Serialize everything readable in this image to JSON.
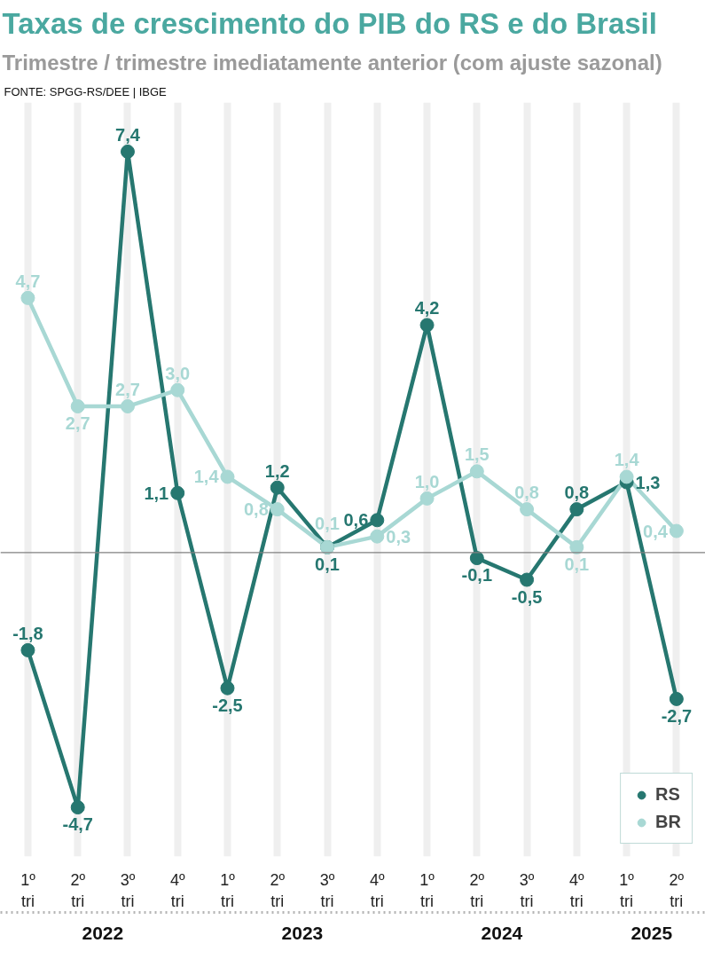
{
  "chart_data": {
    "type": "line",
    "title": "Taxas de crescimento do PIB do RS e do Brasil",
    "subtitle": "Trimestre / trimestre imediatamente anterior (com ajuste sazonal)",
    "annotations": [
      "FONTE: SPGG-RS/DEE | IBGE",
      "2022",
      "2023",
      "2024",
      "2025"
    ],
    "categories": [
      "1º tri",
      "2º tri",
      "3º tri",
      "4º tri",
      "1º tri",
      "2º tri",
      "3º tri",
      "4º tri",
      "1º tri",
      "2º tri",
      "3º tri",
      "4º tri",
      "1º tri",
      "2º tri"
    ],
    "series": [
      {
        "name": "RS",
        "color": "#267770",
        "values": [
          -1.8,
          -4.7,
          7.4,
          1.1,
          -2.5,
          1.2,
          0.1,
          0.6,
          4.2,
          -0.1,
          -0.5,
          0.8,
          1.3,
          -2.7
        ],
        "value_labels": [
          "-1,8",
          "-4,7",
          "7,4",
          "1,1",
          "-2,5",
          "1,2",
          "0,1",
          "0,6",
          "4,2",
          "-0,1",
          "-0,5",
          "0,8",
          "1,3",
          "-2,7"
        ]
      },
      {
        "name": "BR",
        "color": "#a8d8d4",
        "values": [
          4.7,
          2.7,
          2.7,
          3.0,
          1.4,
          0.8,
          0.1,
          0.3,
          1.0,
          1.5,
          0.8,
          0.1,
          1.4,
          0.4
        ],
        "value_labels": [
          "4,7",
          "2,7",
          "2,7",
          "3,0",
          "1,4",
          "0,8",
          "0,1",
          "0,3",
          "1,0",
          "1,5",
          "0,8",
          "0,1",
          "1,4",
          "0,4"
        ]
      }
    ],
    "ref_lines": [
      {
        "axis": "y",
        "value": 0,
        "color": "#808080"
      }
    ],
    "grid": "x",
    "legend": "bottom right",
    "marker": "circle",
    "line_style": "solid",
    "tick_labels": "x"
  }
}
